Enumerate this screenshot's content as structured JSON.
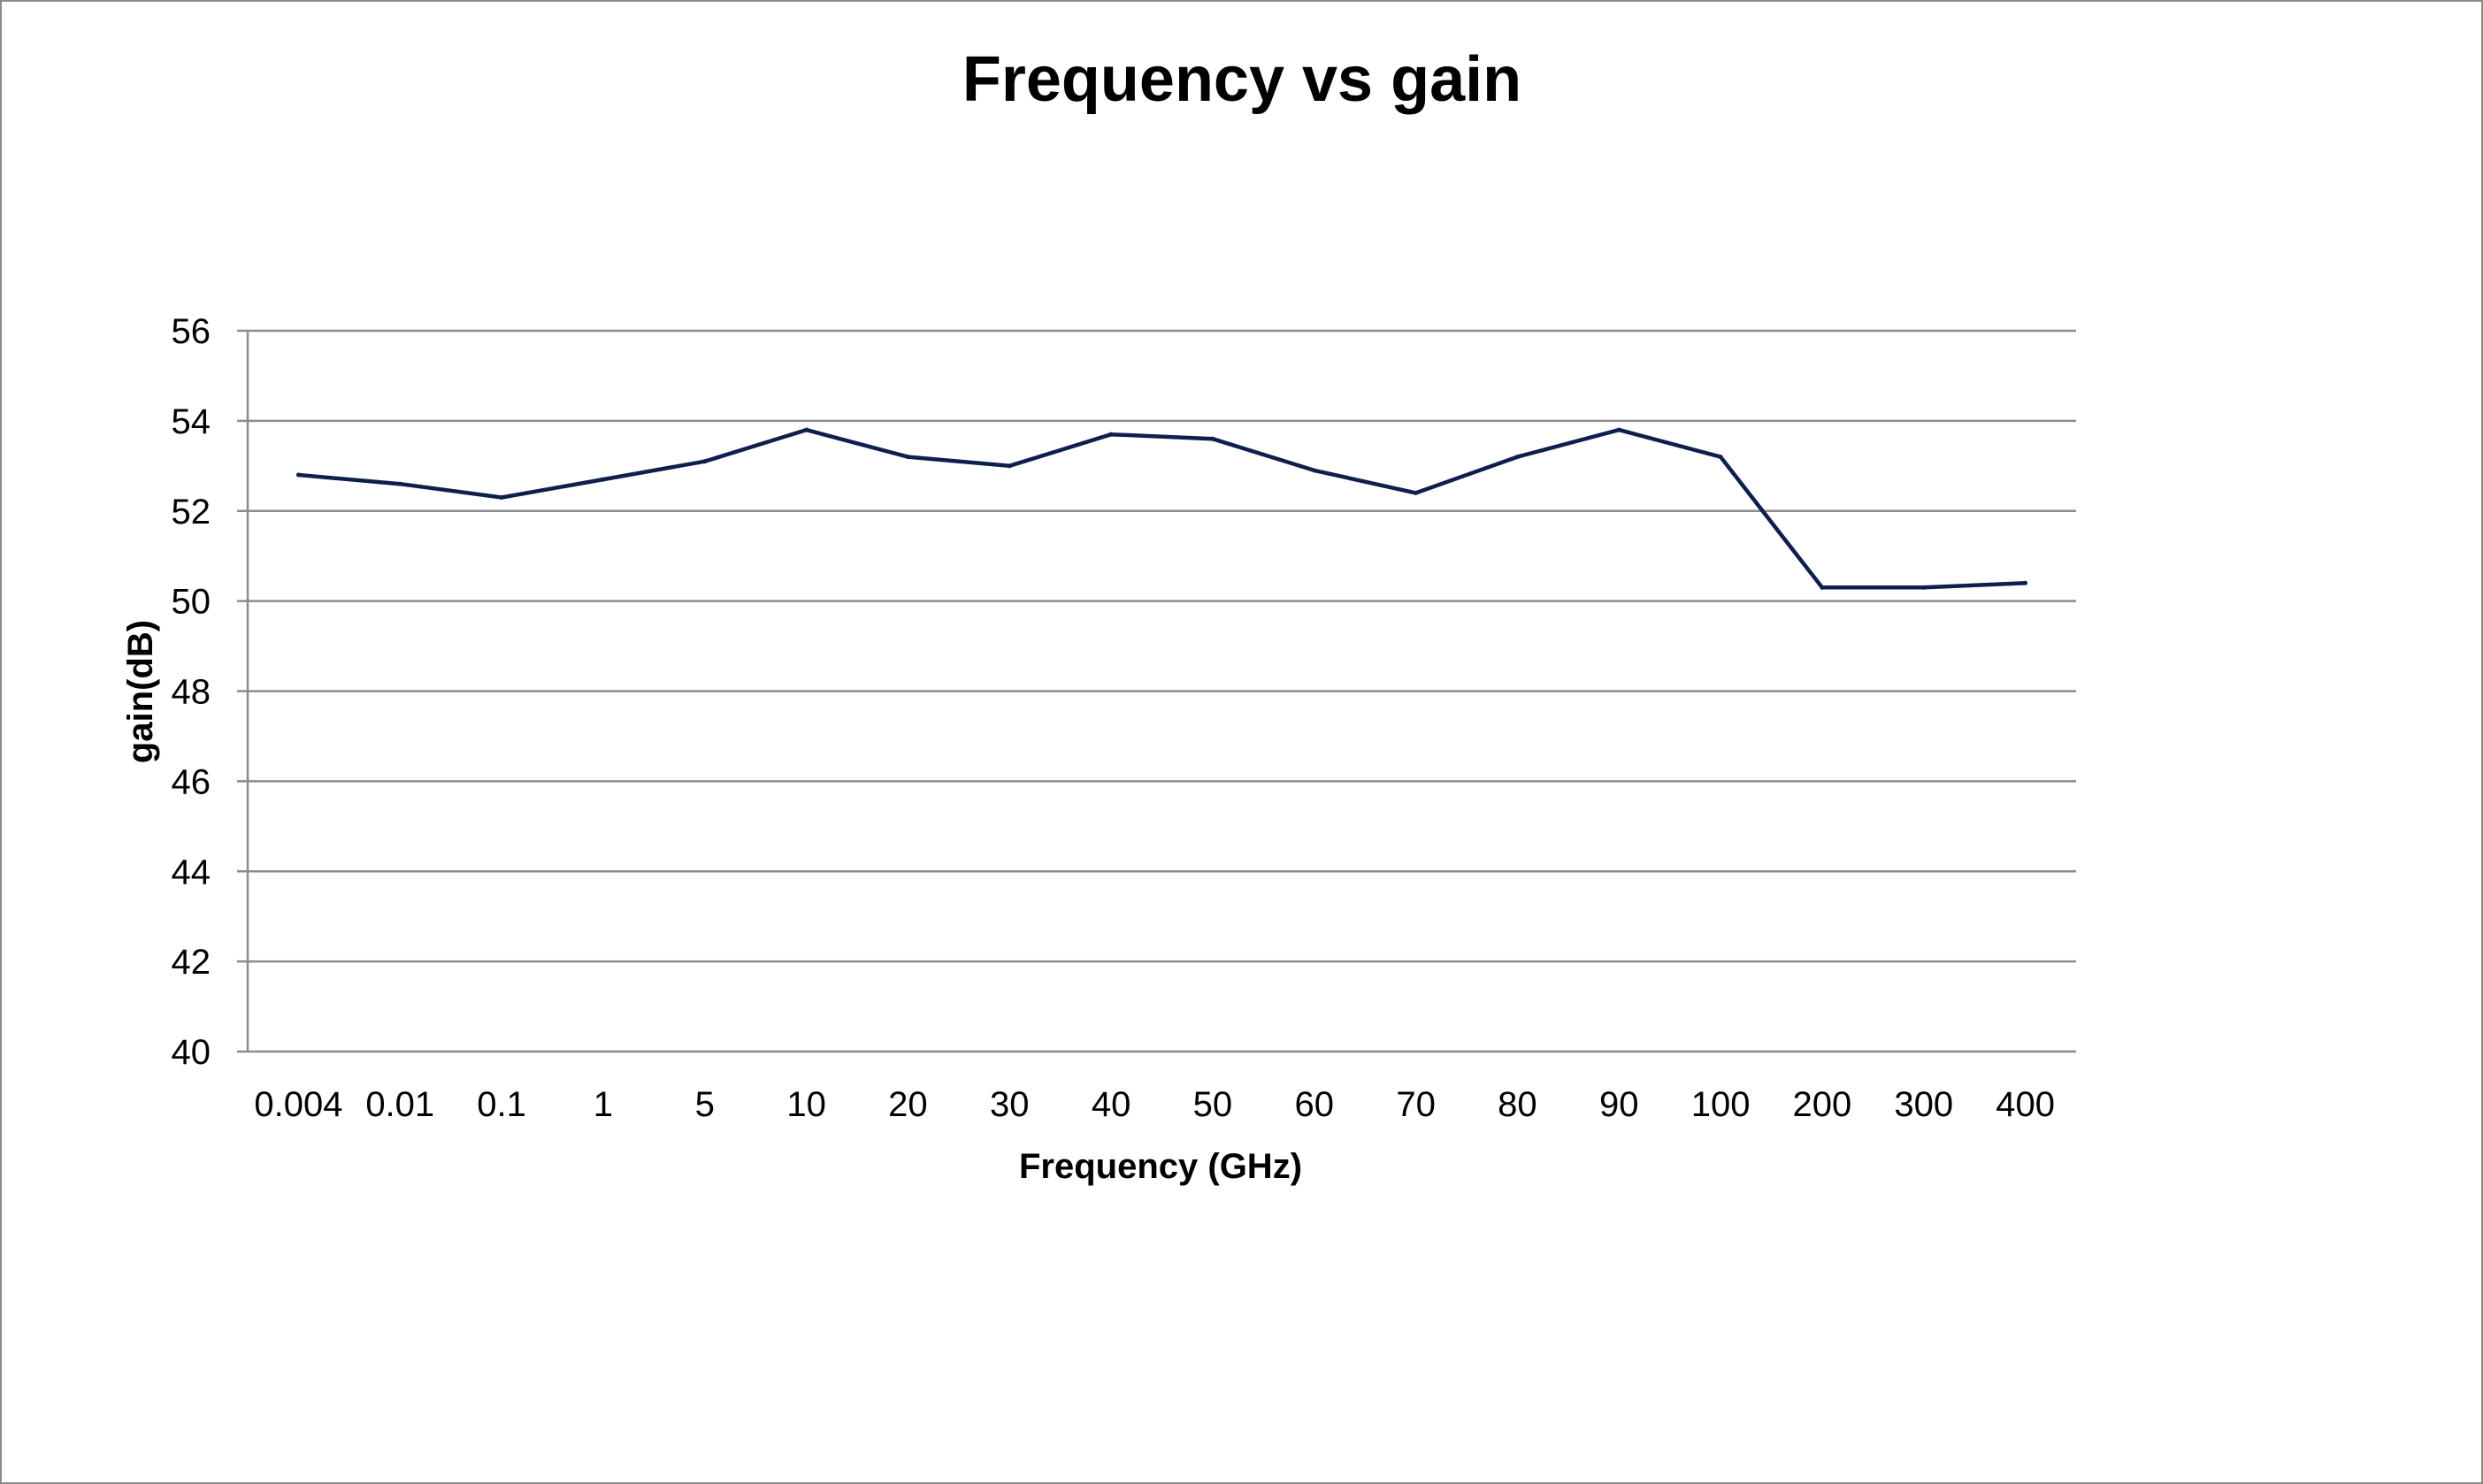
{
  "chart_data": {
    "type": "line",
    "title": "Frequency vs gain",
    "xlabel": "Frequency (GHz)",
    "ylabel": "gain(dB)",
    "categories": [
      "0.004",
      "0.01",
      "0.1",
      "1",
      "5",
      "10",
      "20",
      "30",
      "40",
      "50",
      "60",
      "70",
      "80",
      "90",
      "100",
      "200",
      "300",
      "400"
    ],
    "series": [
      {
        "values": [
          52.8,
          52.6,
          52.3,
          52.7,
          53.1,
          53.8,
          53.2,
          53.0,
          53.7,
          53.6,
          52.9,
          52.4,
          53.2,
          53.8,
          53.2,
          50.3,
          50.3,
          50.4
        ]
      }
    ],
    "ylim": [
      40,
      56
    ],
    "yticks": [
      40,
      42,
      44,
      46,
      48,
      50,
      52,
      54,
      56
    ],
    "grid": true,
    "legend": "none",
    "colors": {
      "line": "#0e1f4d",
      "grid": "#8c8c8c",
      "axis": "#8c8c8c",
      "border": "#8c8c8c"
    }
  }
}
